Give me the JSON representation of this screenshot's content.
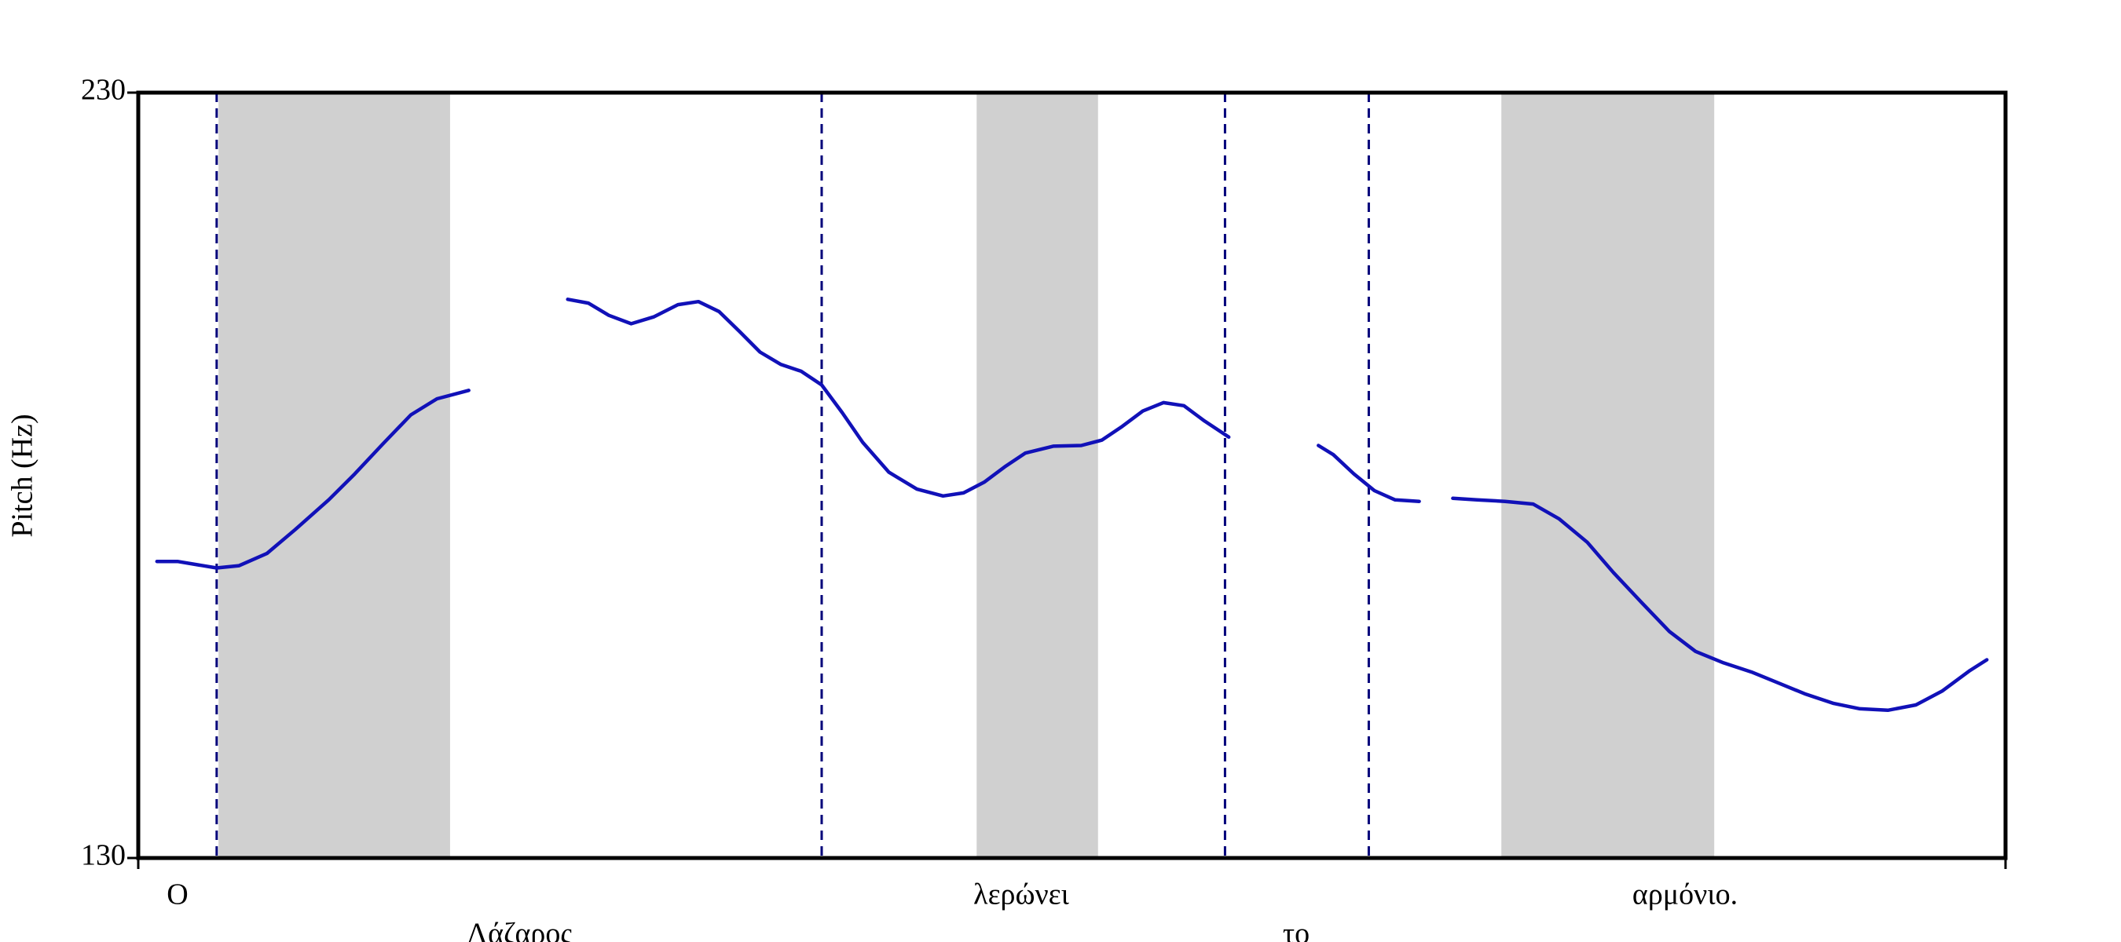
{
  "chart_data": {
    "type": "line",
    "y_label": "Pitch (Hz)",
    "ylim": [
      130,
      230
    ],
    "yticks": [
      130,
      230
    ],
    "xlim": [
      0,
      1
    ],
    "series": [
      {
        "color": "#1111b8",
        "x": [
          0.01,
          0.021,
          0.042,
          0.054,
          0.069,
          0.084,
          0.102,
          0.116,
          0.131,
          0.146,
          0.16,
          0.177,
          null,
          0.23,
          0.241,
          0.252,
          0.264,
          0.276,
          0.289,
          0.3,
          0.311,
          0.322,
          0.333,
          0.344,
          0.355,
          0.366,
          0.377,
          0.388,
          0.402,
          0.417,
          0.431,
          0.442,
          0.453,
          0.464,
          0.475,
          0.49,
          0.505,
          0.516,
          0.527,
          0.538,
          0.549,
          0.56,
          0.571,
          0.584,
          null,
          0.632,
          0.64,
          0.651,
          0.662,
          0.673,
          0.686,
          null,
          0.704,
          0.717,
          0.732,
          0.747,
          0.761,
          0.776,
          0.79,
          0.805,
          0.82,
          0.834,
          0.849,
          0.864,
          0.878,
          0.893,
          0.908,
          0.922,
          0.937,
          0.952,
          0.966,
          0.981,
          0.99
        ],
        "values": [
          168.75,
          168.75,
          167.9,
          168.2,
          169.8,
          172.9,
          176.8,
          180.2,
          184.1,
          187.9,
          190,
          191.1,
          null,
          203,
          202.5,
          200.9,
          199.8,
          200.7,
          202.3,
          202.7,
          201.4,
          198.8,
          196.1,
          194.5,
          193.6,
          191.8,
          188.2,
          184.3,
          180.4,
          178.2,
          177.3,
          177.7,
          179.1,
          181.1,
          182.9,
          183.8,
          183.9,
          184.6,
          186.4,
          188.4,
          189.5,
          189.1,
          187.1,
          185,
          null,
          183.9,
          182.7,
          180.2,
          178,
          176.8,
          176.6,
          null,
          177,
          176.8,
          176.6,
          176.25,
          174.3,
          171.25,
          167.3,
          163.4,
          159.6,
          157,
          155.5,
          154.3,
          152.9,
          151.4,
          150.2,
          149.5,
          149.3,
          150,
          151.8,
          154.5,
          155.9
        ]
      }
    ],
    "boundaries": [
      0.042,
      0.366,
      0.582,
      0.659
    ],
    "shaded_regions": [
      [
        0.043,
        0.167
      ],
      [
        0.449,
        0.514
      ],
      [
        0.73,
        0.844
      ]
    ],
    "words": [
      "Ο",
      "Λάζαρος",
      "λερώνει",
      "το",
      "αρμόνιο."
    ]
  }
}
